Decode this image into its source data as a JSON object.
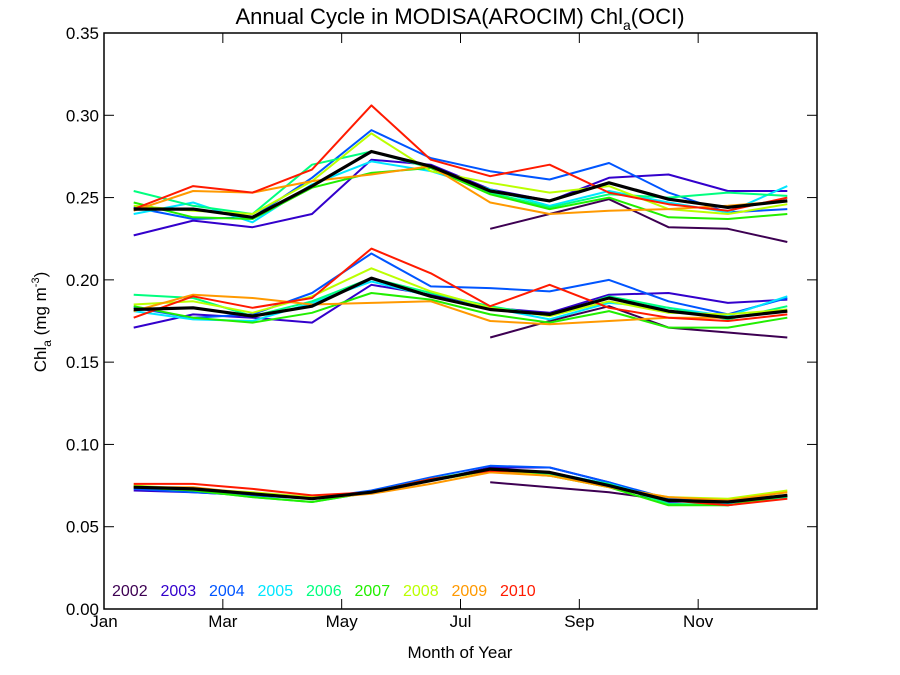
{
  "chart_data": {
    "type": "line",
    "title": "Annual Cycle in MODISA(AROCIM) Chl",
    "title_subscript": "a",
    "title_suffix": "(OCI)",
    "xlabel": "Month of Year",
    "ylabel": {
      "main": "Chl",
      "sub": "a",
      "unit": " (mg m",
      "sup": "-3",
      "close": ")"
    },
    "x_tick_labels": [
      "Jan",
      "Mar",
      "May",
      "Jul",
      "Sep",
      "Nov"
    ],
    "x_tick_values": [
      0,
      2,
      4,
      6,
      8,
      10
    ],
    "xlim": [
      0,
      12
    ],
    "ylim": [
      0,
      0.35
    ],
    "y_ticks": [
      0.0,
      0.05,
      0.1,
      0.15,
      0.2,
      0.25,
      0.3,
      0.35
    ],
    "y_tick_labels": [
      "0.00",
      "0.05",
      "0.10",
      "0.15",
      "0.20",
      "0.25",
      "0.30",
      "0.35"
    ],
    "x": [
      0.5,
      1.5,
      2.5,
      3.5,
      4.5,
      5.5,
      6.5,
      7.5,
      8.5,
      9.5,
      10.5,
      11.5
    ],
    "legend_position": "bottom-left",
    "groups": [
      "upper",
      "middle",
      "lower"
    ],
    "series": [
      {
        "name": "2002",
        "color": "#3d0052",
        "linewidth": 2,
        "upper": [
          null,
          null,
          null,
          null,
          null,
          null,
          0.231,
          0.24,
          0.249,
          0.232,
          0.231,
          0.223
        ],
        "middle": [
          null,
          null,
          null,
          null,
          null,
          null,
          0.165,
          0.175,
          0.184,
          0.171,
          0.168,
          0.165
        ],
        "lower": [
          null,
          null,
          null,
          null,
          null,
          null,
          0.077,
          0.074,
          0.071,
          0.066,
          0.065,
          0.069
        ]
      },
      {
        "name": "2003",
        "color": "#3300cc",
        "linewidth": 2,
        "upper": [
          0.227,
          0.236,
          0.232,
          0.24,
          0.273,
          0.27,
          0.255,
          0.248,
          0.262,
          0.264,
          0.254,
          0.254
        ],
        "middle": [
          0.171,
          0.179,
          0.177,
          0.174,
          0.197,
          0.191,
          0.183,
          0.18,
          0.191,
          0.192,
          0.186,
          0.188
        ],
        "lower": [
          0.072,
          0.071,
          0.069,
          0.068,
          0.071,
          0.078,
          0.086,
          0.086,
          0.077,
          0.065,
          0.066,
          0.069
        ]
      },
      {
        "name": "2004",
        "color": "#0055ff",
        "linewidth": 2,
        "upper": [
          0.244,
          0.237,
          0.238,
          0.262,
          0.291,
          0.274,
          0.266,
          0.261,
          0.271,
          0.253,
          0.241,
          0.243
        ],
        "middle": [
          0.183,
          0.177,
          0.179,
          0.192,
          0.216,
          0.196,
          0.195,
          0.193,
          0.2,
          0.187,
          0.179,
          0.189
        ],
        "lower": [
          0.073,
          0.071,
          0.069,
          0.067,
          0.072,
          0.08,
          0.087,
          0.086,
          0.077,
          0.067,
          0.065,
          0.068
        ]
      },
      {
        "name": "2005",
        "color": "#00e6ff",
        "linewidth": 2,
        "upper": [
          0.24,
          0.247,
          0.235,
          0.258,
          0.272,
          0.266,
          0.255,
          0.245,
          0.254,
          0.247,
          0.241,
          0.257
        ],
        "middle": [
          0.181,
          0.176,
          0.175,
          0.186,
          0.199,
          0.19,
          0.183,
          0.176,
          0.186,
          0.183,
          0.178,
          0.19
        ],
        "lower": [
          0.074,
          0.073,
          0.07,
          0.068,
          0.071,
          0.079,
          0.084,
          0.083,
          0.076,
          0.066,
          0.064,
          0.068
        ]
      },
      {
        "name": "2006",
        "color": "#00ff7f",
        "linewidth": 2,
        "upper": [
          0.254,
          0.245,
          0.24,
          0.27,
          0.278,
          0.268,
          0.253,
          0.244,
          0.252,
          0.25,
          0.253,
          0.251
        ],
        "middle": [
          0.191,
          0.189,
          0.178,
          0.187,
          0.201,
          0.192,
          0.184,
          0.178,
          0.19,
          0.183,
          0.176,
          0.184
        ],
        "lower": [
          0.075,
          0.072,
          0.068,
          0.065,
          0.071,
          0.079,
          0.085,
          0.082,
          0.076,
          0.064,
          0.063,
          0.068
        ]
      },
      {
        "name": "2007",
        "color": "#22ee00",
        "linewidth": 2,
        "upper": [
          0.247,
          0.238,
          0.237,
          0.256,
          0.265,
          0.268,
          0.252,
          0.243,
          0.25,
          0.238,
          0.237,
          0.24
        ],
        "middle": [
          0.184,
          0.177,
          0.174,
          0.18,
          0.192,
          0.188,
          0.179,
          0.174,
          0.181,
          0.171,
          0.171,
          0.177
        ],
        "lower": [
          0.074,
          0.072,
          0.068,
          0.065,
          0.071,
          0.078,
          0.084,
          0.081,
          0.074,
          0.063,
          0.063,
          0.069
        ]
      },
      {
        "name": "2008",
        "color": "#bbff00",
        "linewidth": 2,
        "upper": [
          0.245,
          0.242,
          0.24,
          0.26,
          0.289,
          0.266,
          0.259,
          0.253,
          0.257,
          0.243,
          0.24,
          0.246
        ],
        "middle": [
          0.185,
          0.187,
          0.18,
          0.19,
          0.207,
          0.193,
          0.183,
          0.178,
          0.187,
          0.18,
          0.179,
          0.182
        ],
        "lower": [
          0.075,
          0.073,
          0.071,
          0.068,
          0.071,
          0.078,
          0.084,
          0.081,
          0.074,
          0.068,
          0.067,
          0.072
        ]
      },
      {
        "name": "2009",
        "color": "#ff9900",
        "linewidth": 2,
        "upper": [
          0.242,
          0.254,
          0.253,
          0.26,
          0.264,
          0.269,
          0.247,
          0.24,
          0.242,
          0.243,
          0.245,
          0.248
        ],
        "middle": [
          0.181,
          0.191,
          0.189,
          0.185,
          0.186,
          0.187,
          0.175,
          0.173,
          0.175,
          0.177,
          0.177,
          0.181
        ],
        "lower": [
          0.074,
          0.074,
          0.07,
          0.067,
          0.07,
          0.076,
          0.083,
          0.081,
          0.074,
          0.068,
          0.066,
          0.071
        ]
      },
      {
        "name": "2010",
        "color": "#ff1a00",
        "linewidth": 2,
        "upper": [
          0.243,
          0.257,
          0.253,
          0.267,
          0.306,
          0.273,
          0.263,
          0.27,
          0.253,
          0.246,
          0.242,
          0.25
        ],
        "middle": [
          0.177,
          0.19,
          0.183,
          0.189,
          0.219,
          0.204,
          0.184,
          0.197,
          0.183,
          0.177,
          0.175,
          0.179
        ],
        "lower": [
          0.076,
          0.076,
          0.073,
          0.069,
          0.071,
          0.079,
          0.084,
          0.083,
          0.075,
          0.066,
          0.063,
          0.067
        ]
      },
      {
        "name": "",
        "color": "#000000",
        "linewidth": 3.2,
        "upper": [
          0.243,
          0.243,
          0.238,
          0.257,
          0.278,
          0.269,
          0.254,
          0.248,
          0.259,
          0.249,
          0.244,
          0.248
        ],
        "middle": [
          0.182,
          0.183,
          0.178,
          0.184,
          0.201,
          0.19,
          0.182,
          0.179,
          0.189,
          0.181,
          0.177,
          0.181
        ],
        "lower": [
          0.074,
          0.073,
          0.07,
          0.067,
          0.071,
          0.078,
          0.085,
          0.083,
          0.075,
          0.066,
          0.065,
          0.069
        ]
      }
    ]
  }
}
